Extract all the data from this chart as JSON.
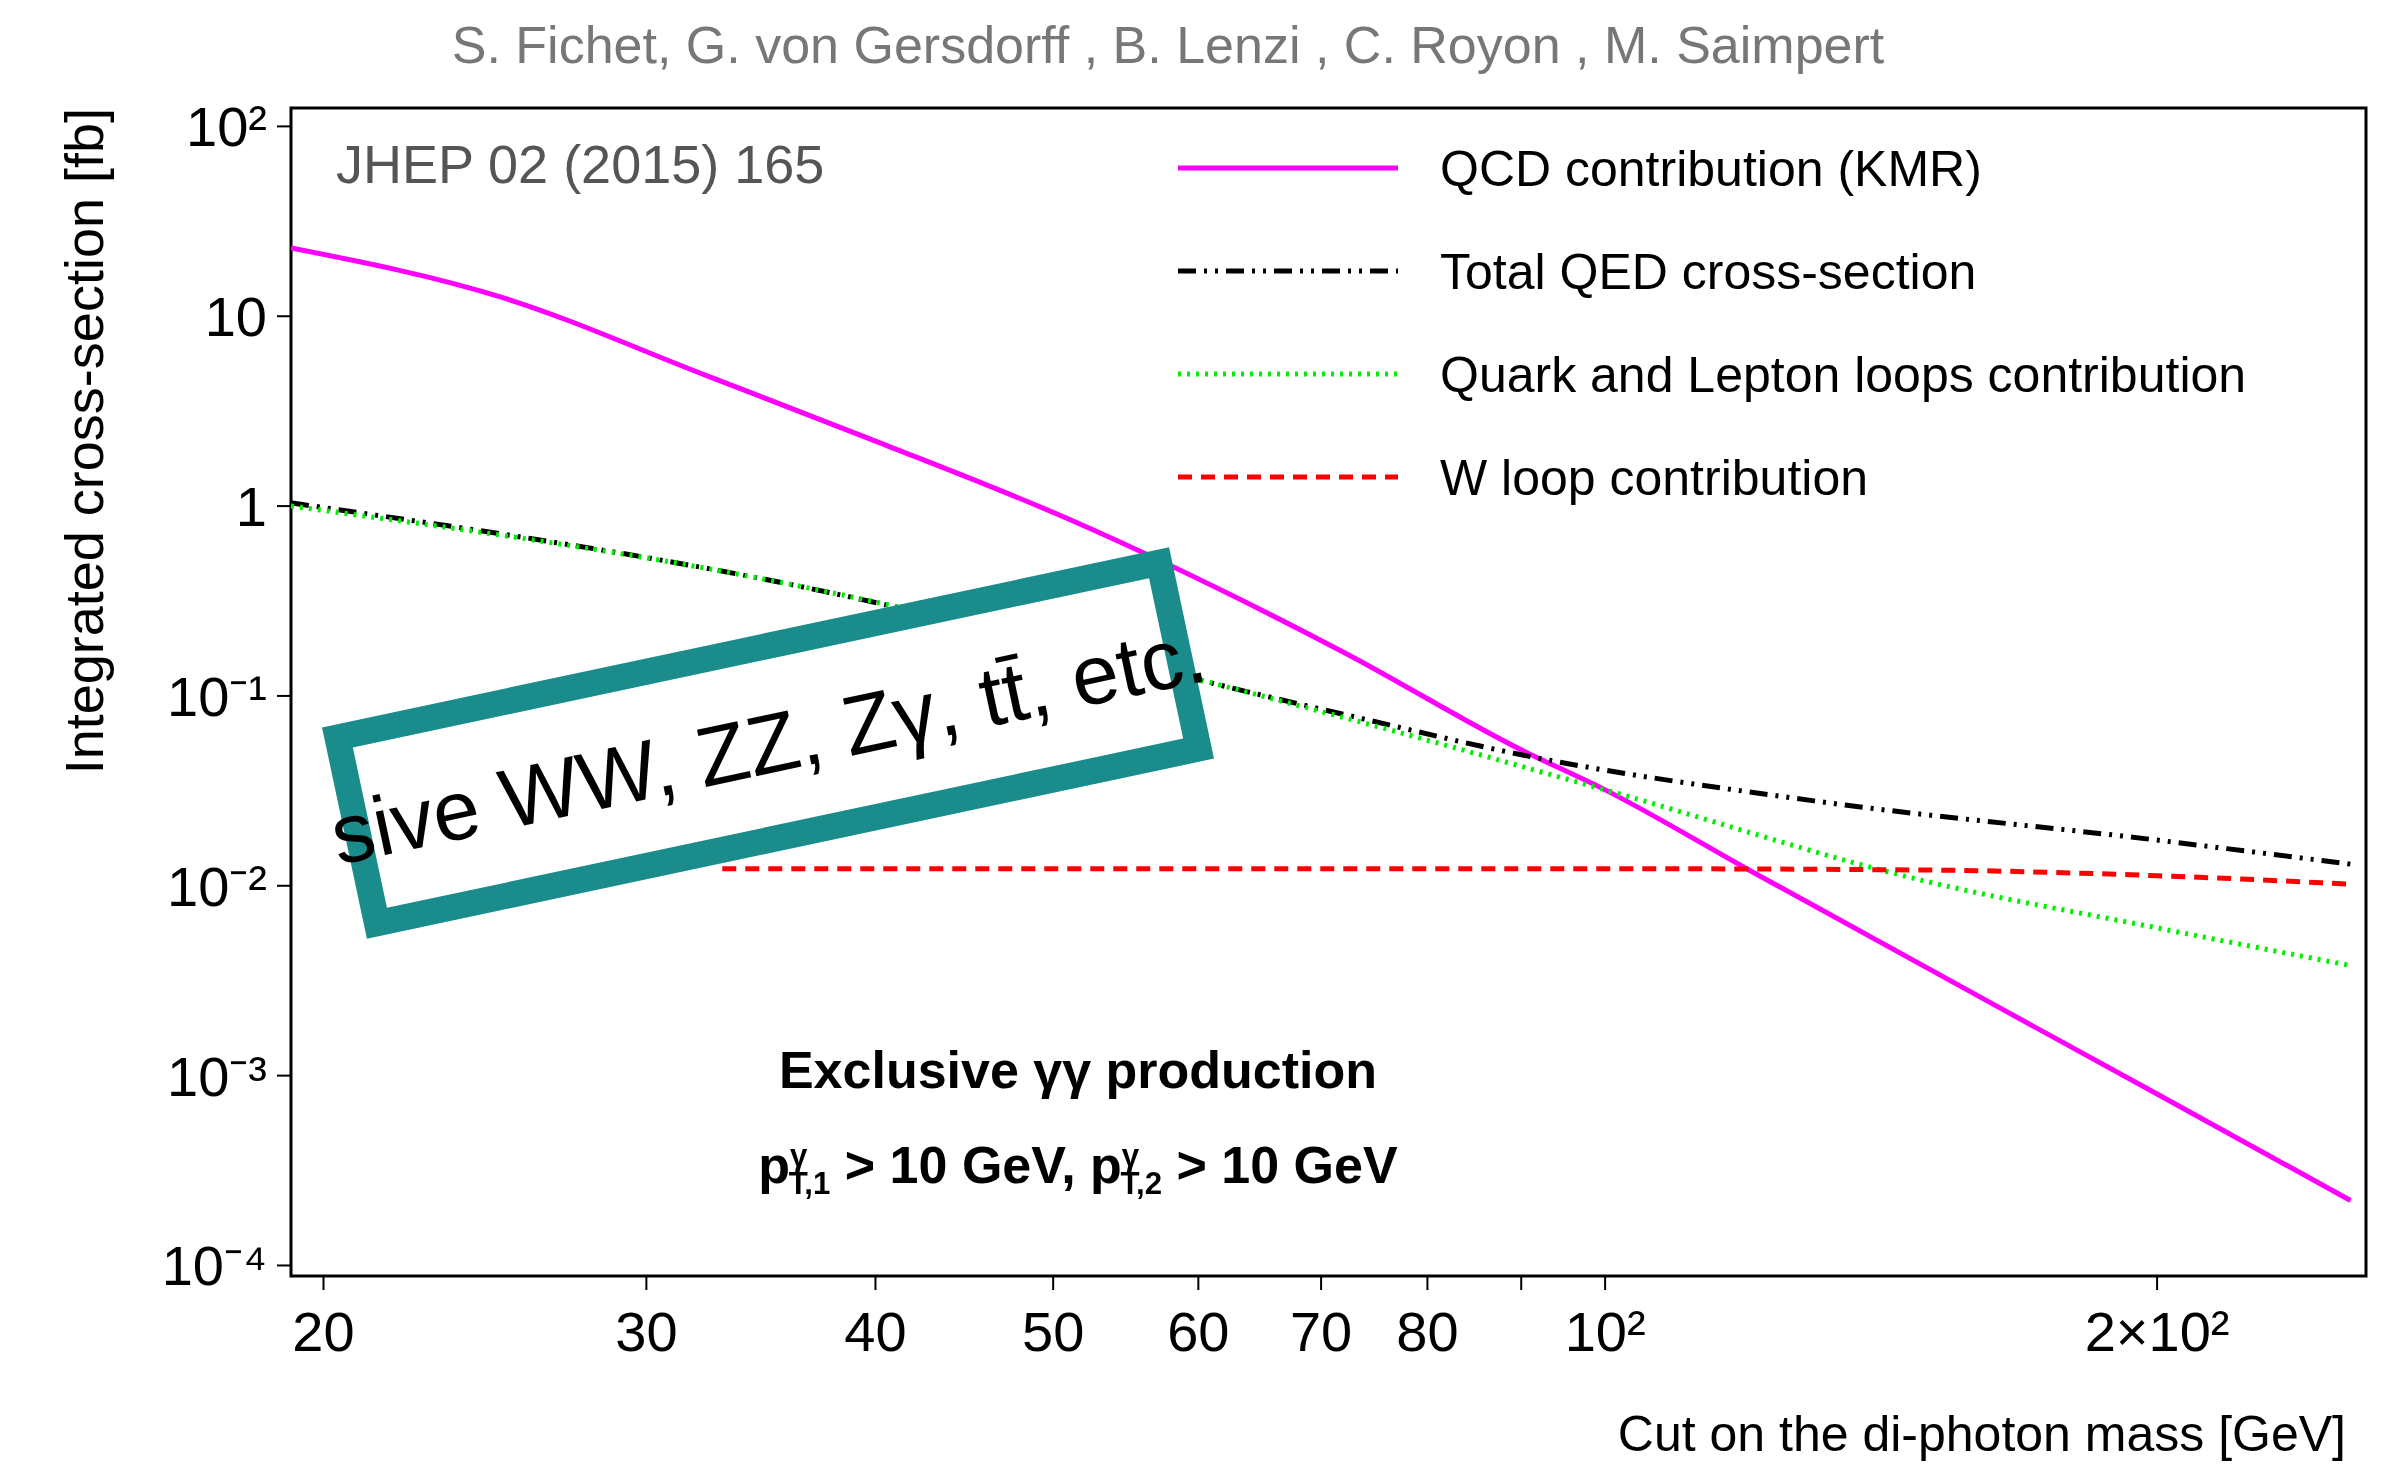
{
  "chart_data": {
    "type": "line",
    "title": "S. Fichet, G. von Gersdorff , B. Lenzi , C. Royon , M. Saimpert",
    "xlabel": "Cut on the di-photon mass [GeV]",
    "ylabel": "Integrated cross-section [fb]",
    "log": "xy",
    "xlim": [
      19.2,
      260
    ],
    "ylim": [
      8.8e-05,
      125
    ],
    "xticks": [
      20,
      30,
      40,
      50,
      60,
      70,
      80,
      {
        "value": 90,
        "label": null
      },
      {
        "value": 100,
        "label": "10²"
      },
      {
        "value": 200,
        "label": "2×10²"
      }
    ],
    "yticks": [
      {
        "value": 0.0001,
        "label": "10⁻⁴"
      },
      {
        "value": 0.001,
        "label": "10⁻³"
      },
      {
        "value": 0.01,
        "label": "10⁻²"
      },
      {
        "value": 0.1,
        "label": "10⁻¹"
      },
      1,
      10,
      {
        "value": 100,
        "label": "10²"
      }
    ],
    "legend": "top right",
    "grid": false,
    "series": [
      {
        "name": "QCD contribution (KMR)",
        "color": "#ff00ff",
        "line_style": "solid",
        "x": [
          19.2,
          25,
          32.3,
          40,
          50.9,
          72,
          90,
          100,
          120,
          200,
          255
        ],
        "values": [
          22.9,
          12.6,
          4.9,
          2.2,
          0.86,
          0.17,
          0.052,
          0.032,
          0.012,
          0.0008,
          0.00022
        ]
      },
      {
        "name": "Total QED cross-section",
        "color": "#000000",
        "line_style": "dashdot",
        "x": [
          19.2,
          34,
          72,
          90,
          130,
          200,
          255
        ],
        "values": [
          1.04,
          0.43,
          0.08,
          0.049,
          0.028,
          0.0174,
          0.013
        ]
      },
      {
        "name": "Quark and Lepton loops contribution",
        "color": "#00ee00",
        "line_style": "dotted",
        "x": [
          19.2,
          34,
          72,
          100,
          150,
          200,
          255
        ],
        "values": [
          1.0,
          0.43,
          0.077,
          0.032,
          0.0105,
          0.006,
          0.0038
        ]
      },
      {
        "name": "W loop contribution",
        "color": "#ff0000",
        "line_style": "dashed",
        "x": [
          33,
          100,
          150,
          200,
          255
        ],
        "values": [
          0.0123,
          0.0123,
          0.0121,
          0.0113,
          0.0102
        ]
      }
    ],
    "annotations": [
      "JHEP 02 (2015) 165",
      "Exclusive γγ production",
      "p$^{γ}$$_{T,1}$ > 10 GeV, p$^{γ}$$_{T,2}$ > 10 GeV",
      "sive WW, ZZ, Zγ, tt̄, etc."
    ]
  }
}
